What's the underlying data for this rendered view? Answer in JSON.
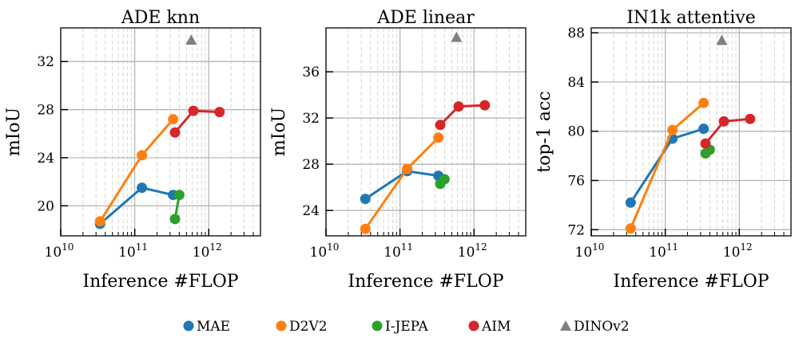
{
  "colors": {
    "MAE": "#1f77b4",
    "D2V2": "#ff7f0e",
    "I-JEPA": "#2ca02c",
    "AIM": "#d62728",
    "DINOv2": "#7f7f7f"
  },
  "legend": {
    "items": [
      "MAE",
      "D2V2",
      "I-JEPA",
      "AIM",
      "DINOv2"
    ],
    "placement": "bottom"
  },
  "chart_data": [
    {
      "type": "line",
      "title": "ADE knn",
      "xlabel": "Inference #FLOP",
      "ylabel": "mIoU",
      "xscale": "log",
      "xlim": [
        10000000000.0,
        5000000000000.0
      ],
      "ylim": [
        17.5,
        34.8
      ],
      "xticks": [
        10000000000.0,
        100000000000.0,
        1000000000000.0
      ],
      "xtick_labels": [
        [
          "10",
          "10"
        ],
        [
          "10",
          "11"
        ],
        [
          "10",
          "12"
        ]
      ],
      "yticks": [
        20,
        24,
        28,
        32
      ],
      "grid": true,
      "series": [
        {
          "name": "MAE",
          "x": [
            34000000000.0,
            125000000000.0,
            330000000000.0
          ],
          "y": [
            18.5,
            21.5,
            20.9
          ]
        },
        {
          "name": "D2V2",
          "x": [
            34000000000.0,
            125000000000.0,
            330000000000.0
          ],
          "y": [
            18.7,
            24.2,
            27.2
          ]
        },
        {
          "name": "I-JEPA",
          "x": [
            350000000000.0,
            400000000000.0
          ],
          "y": [
            18.9,
            20.9
          ]
        },
        {
          "name": "AIM",
          "x": [
            350000000000.0,
            620000000000.0,
            1400000000000.0
          ],
          "y": [
            26.1,
            27.9,
            27.8
          ]
        },
        {
          "name": "DINOv2",
          "marker": "triangle",
          "x": [
            580000000000.0
          ],
          "y": [
            33.8
          ]
        }
      ]
    },
    {
      "type": "line",
      "title": "ADE linear",
      "xlabel": "Inference #FLOP",
      "ylabel": "mIoU",
      "xscale": "log",
      "xlim": [
        10000000000.0,
        5000000000000.0
      ],
      "ylim": [
        21.8,
        39.8
      ],
      "xticks": [
        10000000000.0,
        100000000000.0,
        1000000000000.0
      ],
      "xtick_labels": [
        [
          "10",
          "10"
        ],
        [
          "10",
          "11"
        ],
        [
          "10",
          "12"
        ]
      ],
      "yticks": [
        24,
        28,
        32,
        36
      ],
      "grid": true,
      "series": [
        {
          "name": "MAE",
          "x": [
            34000000000.0,
            125000000000.0,
            330000000000.0
          ],
          "y": [
            25.0,
            27.4,
            27.0
          ]
        },
        {
          "name": "D2V2",
          "x": [
            34000000000.0,
            125000000000.0,
            330000000000.0
          ],
          "y": [
            22.4,
            27.6,
            30.3
          ]
        },
        {
          "name": "I-JEPA",
          "x": [
            350000000000.0,
            400000000000.0
          ],
          "y": [
            26.3,
            26.7
          ]
        },
        {
          "name": "AIM",
          "x": [
            350000000000.0,
            620000000000.0,
            1400000000000.0
          ],
          "y": [
            31.4,
            33.0,
            33.1
          ]
        },
        {
          "name": "DINOv2",
          "marker": "triangle",
          "x": [
            580000000000.0
          ],
          "y": [
            39.0
          ]
        }
      ]
    },
    {
      "type": "line",
      "title": "IN1k attentive",
      "xlabel": "Inference #FLOP",
      "ylabel": "top-1 acc",
      "xscale": "log",
      "xlim": [
        10000000000.0,
        5000000000000.0
      ],
      "ylim": [
        71.5,
        88.4
      ],
      "xticks": [
        10000000000.0,
        100000000000.0,
        1000000000000.0
      ],
      "xtick_labels": [
        [
          "10",
          "10"
        ],
        [
          "10",
          "11"
        ],
        [
          "10",
          "12"
        ]
      ],
      "yticks": [
        72,
        76,
        80,
        84,
        88
      ],
      "grid": true,
      "series": [
        {
          "name": "MAE",
          "x": [
            34000000000.0,
            125000000000.0,
            330000000000.0
          ],
          "y": [
            74.2,
            79.4,
            80.2
          ]
        },
        {
          "name": "D2V2",
          "x": [
            34000000000.0,
            125000000000.0,
            330000000000.0
          ],
          "y": [
            72.1,
            80.1,
            82.3
          ]
        },
        {
          "name": "I-JEPA",
          "x": [
            350000000000.0,
            400000000000.0
          ],
          "y": [
            78.2,
            78.5
          ]
        },
        {
          "name": "AIM",
          "x": [
            350000000000.0,
            620000000000.0,
            1400000000000.0
          ],
          "y": [
            79.0,
            80.8,
            81.0
          ]
        },
        {
          "name": "DINOv2",
          "marker": "triangle",
          "x": [
            580000000000.0
          ],
          "y": [
            87.4
          ]
        }
      ]
    }
  ]
}
